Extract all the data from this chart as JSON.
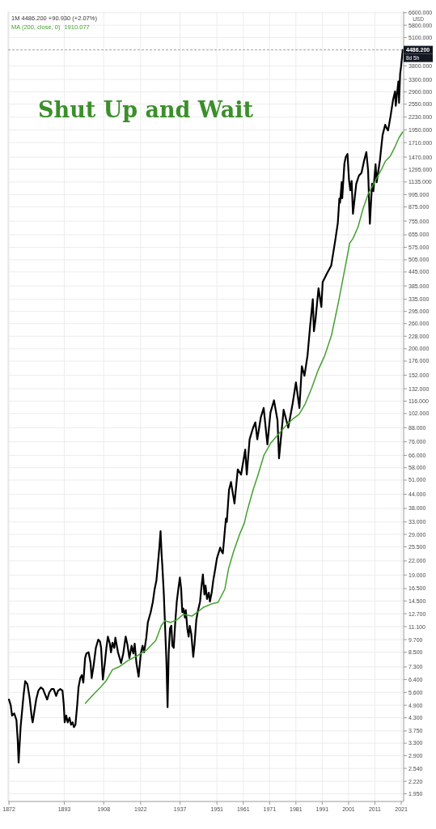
{
  "chart_data": {
    "type": "line",
    "title": "Shut Up and Wait",
    "annotations": [
      "1M 4486.200 +90.930 (+2.07%)",
      "1910.077",
      "8d 5h",
      "USD"
    ],
    "series": [
      {
        "color": "#000000",
        "x": [
          "1872-01",
          "1872-09",
          "1873-03",
          "1874-01",
          "1874-11",
          "1875-05",
          "1875-09",
          "1876-06",
          "1877-08",
          "1878-03",
          "1879-01",
          "1879-11",
          "1880-09",
          "1881-01",
          "1882-05",
          "1883-03",
          "1884-02",
          "1884-12",
          "1885-09",
          "1886-07",
          "1887-05",
          "1888-03",
          "1889-01",
          "1889-12",
          "1890-09",
          "1891-07",
          "1892-05",
          "1892-11",
          "1893-03",
          "1893-10",
          "1894-05",
          "1895-01",
          "1895-08",
          "1896-03",
          "1896-09",
          "1897-04",
          "1897-12",
          "1898-06",
          "1899-02",
          "1899-09",
          "1900-04",
          "1900-12",
          "1901-06",
          "1902-04",
          "1903-01",
          "1903-06",
          "1904-02",
          "1905-01",
          "1905-12",
          "1906-08",
          "1907-01",
          "1907-09",
          "1908-06",
          "1909-01",
          "1909-08",
          "1910-05",
          "1910-10",
          "1911-05",
          "1912-01",
          "1912-06",
          "1913-06",
          "1914-08",
          "1915-06",
          "1916-05",
          "1917-01",
          "1917-10",
          "1918-08",
          "1919-04",
          "1919-10",
          "1920-06",
          "1921-04",
          "1922-02",
          "1922-10",
          "1923-05",
          "1924-03",
          "1924-10",
          "1925-11",
          "1926-09",
          "1927-05",
          "1928-01",
          "1928-08",
          "1929-03",
          "1929-08",
          "1930-01",
          "1930-04",
          "1930-11",
          "1931-05",
          "1931-11",
          "1932-04",
          "1932-09",
          "1933-03",
          "1933-09",
          "1934-02",
          "1934-08",
          "1935-03",
          "1935-10",
          "1936-05",
          "1936-12",
          "1937-06",
          "1937-11",
          "1938-04",
          "1938-11",
          "1939-03",
          "1939-10",
          "1940-04",
          "1940-09",
          "1941-04",
          "1942-01",
          "1942-07",
          "1943-03",
          "1943-09",
          "1944-08",
          "1945-03",
          "1945-09",
          "1946-04",
          "1946-09",
          "1947-04",
          "1947-12",
          "1948-05",
          "1949-01",
          "1949-08",
          "1950-03",
          "1951-01",
          "1951-08",
          "1952-04",
          "1952-10",
          "1953-04",
          "1953-12",
          "1954-06",
          "1954-10",
          "1955-08",
          "1956-05",
          "1957-09",
          "1958-12",
          "1960-03",
          "1961-10",
          "1962-05",
          "1963-06",
          "1964-10",
          "1965-08",
          "1966-05",
          "1967-09",
          "1968-10",
          "1970-03",
          "1971-05",
          "1972-09",
          "1974-01",
          "1974-08",
          "1976-05",
          "1978-02",
          "1979-10",
          "1981-01",
          "1982-05",
          "1983-04",
          "1984-04",
          "1985-06",
          "1986-06",
          "1987-06",
          "1987-11",
          "1988-06",
          "1989-08",
          "1990-09",
          "1991-03",
          "1992-10",
          "1994-06",
          "1995-12",
          "1996-12",
          "1997-07",
          "1997-10",
          "1998-06",
          "1998-08",
          "1999-06",
          "1999-12",
          "2000-08",
          "2001-03",
          "2001-09",
          "2002-03",
          "2002-09",
          "2003-12",
          "2004-12",
          "2005-12",
          "2006-12",
          "2007-10",
          "2008-06",
          "2008-11",
          "2009-02",
          "2009-12",
          "2010-06",
          "2011-04",
          "2011-09",
          "2012-12",
          "2013-12",
          "2014-12",
          "2015-08",
          "2016-01",
          "2016-12",
          "2017-12",
          "2018-09",
          "2018-12",
          "2019-12",
          "2020-02",
          "2020-03",
          "2020-08",
          "2020-12",
          "2021-07",
          "2021-08"
        ],
        "values": [
          5.2,
          4.9,
          4.4,
          4.5,
          4.2,
          3.4,
          2.7,
          3.9,
          5.5,
          6.3,
          6.1,
          5.3,
          4.3,
          4.1,
          5.2,
          5.7,
          5.9,
          5.8,
          5.5,
          5.2,
          5.6,
          5.8,
          5.8,
          5.4,
          5.7,
          5.8,
          5.7,
          4.9,
          4.1,
          4.4,
          4.1,
          4.3,
          4.0,
          4.1,
          3.9,
          4.0,
          4.9,
          5.9,
          6.5,
          6.7,
          6.2,
          8.0,
          8.4,
          8.5,
          7.6,
          6.5,
          7.3,
          8.9,
          9.7,
          9.5,
          8.9,
          6.4,
          7.6,
          8.9,
          10.0,
          9.3,
          8.5,
          9.4,
          8.9,
          9.9,
          8.5,
          7.6,
          8.4,
          10.0,
          9.2,
          8.0,
          9.1,
          8.4,
          9.3,
          7.6,
          6.6,
          8.4,
          9.1,
          8.5,
          9.9,
          11.6,
          12.9,
          14.4,
          16.4,
          17.9,
          21.3,
          25.6,
          30,
          23.3,
          21.0,
          15.5,
          10.9,
          7.6,
          4.8,
          8.4,
          10.9,
          11.2,
          9.1,
          8.9,
          11.6,
          14.4,
          16.4,
          18.5,
          16.4,
          12.9,
          13.4,
          12.2,
          13.2,
          10.9,
          10.0,
          11.2,
          10.3,
          8.1,
          9.3,
          11.9,
          12.9,
          14.4,
          17.0,
          19.1,
          15.5,
          17.0,
          14.8,
          15.8,
          14.4,
          15.8,
          17.9,
          19.6,
          22.6,
          23.8,
          25.3,
          24.3,
          23.8,
          29.4,
          34.2,
          33,
          46,
          50,
          40,
          57,
          54,
          70,
          54,
          78,
          88,
          93,
          78,
          98,
          108,
          74,
          103,
          117,
          95,
          64,
          106,
          88,
          113,
          141,
          108,
          167,
          151,
          187,
          255,
          335,
          240,
          270,
          375,
          309,
          400,
          437,
          476,
          616,
          741,
          954,
          915,
          1134,
          957,
          1373,
          1469,
          1518,
          1160,
          1041,
          1147,
          815,
          1112,
          1212,
          1248,
          1418,
          1549,
          1280,
          896,
          735,
          1115,
          1031,
          1364,
          1131,
          1426,
          1848,
          2059,
          1972,
          1940,
          2239,
          2674,
          2914,
          2507,
          3231,
          2954,
          2585,
          3500,
          3756,
          4395,
          4486.2
        ]
      },
      {
        "name": "MA (200, close, 0)",
        "color": "#43a030",
        "x": [
          "1901-01",
          "1904-03",
          "1906-10",
          "1908-11",
          "1911-05",
          "1913-10",
          "1917-04",
          "1920-10",
          "1924-04",
          "1927-10",
          "1929-11",
          "1931-04",
          "1933-05",
          "1935-10",
          "1938-03",
          "1941-08",
          "1943-08",
          "1946-01",
          "1949-04",
          "1951-06",
          "1954-01",
          "1955-06",
          "1957-04",
          "1959-10",
          "1961-06",
          "1962-04",
          "1964-09",
          "1966-06",
          "1968-11",
          "1971-06",
          "1974-04",
          "1977-04",
          "1979-09",
          "1982-03",
          "1984-06",
          "1987-01",
          "1989-06",
          "1992-01",
          "1994-07",
          "1997-03",
          "2000-04",
          "2001-06",
          "2002-09",
          "2004-08",
          "2006-07",
          "2008-08",
          "2011-01",
          "2013-08",
          "2015-01",
          "2016-12",
          "2018-09",
          "2020-03",
          "2021-08"
        ],
        "values": [
          5.0,
          5.5,
          5.9,
          6.3,
          7.1,
          7.3,
          7.8,
          8.2,
          8.7,
          9.6,
          11.2,
          11.8,
          11.6,
          11.9,
          12.6,
          12.4,
          12.9,
          13.6,
          14.1,
          14.3,
          16.4,
          20.3,
          24.1,
          29.3,
          32.6,
          36.1,
          45.8,
          53,
          66,
          75,
          82,
          90,
          96,
          101,
          112,
          133,
          160,
          187,
          230,
          325,
          505,
          600,
          630,
          710,
          860,
          1010,
          1140,
          1300,
          1410,
          1490,
          1640,
          1800,
          1910.077
        ]
      }
    ],
    "xlim": [
      "1871-09",
      "2021-12"
    ],
    "xticks": [
      "1872",
      "1893",
      "1908",
      "1922",
      "1937",
      "1951",
      "1961",
      "1971",
      "1981",
      "1991",
      "2001",
      "2011",
      "2021"
    ],
    "ylim": [
      1.8,
      6700
    ],
    "yticks": [
      {
        "value": 6600,
        "label": "6600.000"
      },
      {
        "value": 5800,
        "label": "5800.000"
      },
      {
        "value": 5100,
        "label": "5100.000"
      },
      {
        "value": 3800,
        "label": "3800.000"
      },
      {
        "value": 3300,
        "label": "3300.000"
      },
      {
        "value": 2900,
        "label": "2900.000"
      },
      {
        "value": 2550,
        "label": "2550.000"
      },
      {
        "value": 2230,
        "label": "2230.000"
      },
      {
        "value": 1950,
        "label": "1950.000"
      },
      {
        "value": 1710,
        "label": "1710.000"
      },
      {
        "value": 1470,
        "label": "1470.000"
      },
      {
        "value": 1295,
        "label": "1295.000"
      },
      {
        "value": 1135,
        "label": "1135.000"
      },
      {
        "value": 995,
        "label": "995.000"
      },
      {
        "value": 875,
        "label": "875.000"
      },
      {
        "value": 755,
        "label": "755.000"
      },
      {
        "value": 655,
        "label": "655.000"
      },
      {
        "value": 575,
        "label": "575.000"
      },
      {
        "value": 505,
        "label": "505.000"
      },
      {
        "value": 445,
        "label": "445.000"
      },
      {
        "value": 385,
        "label": "385.000"
      },
      {
        "value": 335,
        "label": "335.000"
      },
      {
        "value": 295,
        "label": "295.000"
      },
      {
        "value": 260,
        "label": "260.000"
      },
      {
        "value": 228,
        "label": "228.000"
      },
      {
        "value": 200,
        "label": "200.000"
      },
      {
        "value": 176,
        "label": "176.000"
      },
      {
        "value": 152,
        "label": "152.000"
      },
      {
        "value": 132,
        "label": "132.000"
      },
      {
        "value": 116,
        "label": "116.000"
      },
      {
        "value": 102,
        "label": "102.000"
      },
      {
        "value": 88,
        "label": "88.000"
      },
      {
        "value": 76,
        "label": "76.000"
      },
      {
        "value": 66,
        "label": "66.000"
      },
      {
        "value": 58,
        "label": "58.000"
      },
      {
        "value": 51,
        "label": "51.000"
      },
      {
        "value": 44,
        "label": "44.000"
      },
      {
        "value": 38,
        "label": "38.000"
      },
      {
        "value": 33,
        "label": "33.000"
      },
      {
        "value": 29,
        "label": "29.000"
      },
      {
        "value": 25.5,
        "label": "25.500"
      },
      {
        "value": 22,
        "label": "22.000"
      },
      {
        "value": 19,
        "label": "19.000"
      },
      {
        "value": 16.5,
        "label": "16.500"
      },
      {
        "value": 14.5,
        "label": "14.500"
      },
      {
        "value": 12.7,
        "label": "12.700"
      },
      {
        "value": 11.1,
        "label": "11.100"
      },
      {
        "value": 9.7,
        "label": "9.700"
      },
      {
        "value": 8.5,
        "label": "8.500"
      },
      {
        "value": 7.3,
        "label": "7.300"
      },
      {
        "value": 6.4,
        "label": "6.400"
      },
      {
        "value": 5.6,
        "label": "5.600"
      },
      {
        "value": 4.9,
        "label": "4.900"
      },
      {
        "value": 4.3,
        "label": "4.300"
      },
      {
        "value": 3.75,
        "label": "3.750"
      },
      {
        "value": 3.3,
        "label": "3.300"
      },
      {
        "value": 2.9,
        "label": "2.900"
      },
      {
        "value": 2.54,
        "label": "2.540"
      },
      {
        "value": 2.22,
        "label": "2.220"
      },
      {
        "value": 1.95,
        "label": "1.950"
      }
    ],
    "log": true,
    "grid": true,
    "legend": "top left",
    "ref_lines": [
      {
        "axis": "y",
        "value": 4486.2,
        "label": "4486.200",
        "line_style": "dashed"
      }
    ]
  }
}
